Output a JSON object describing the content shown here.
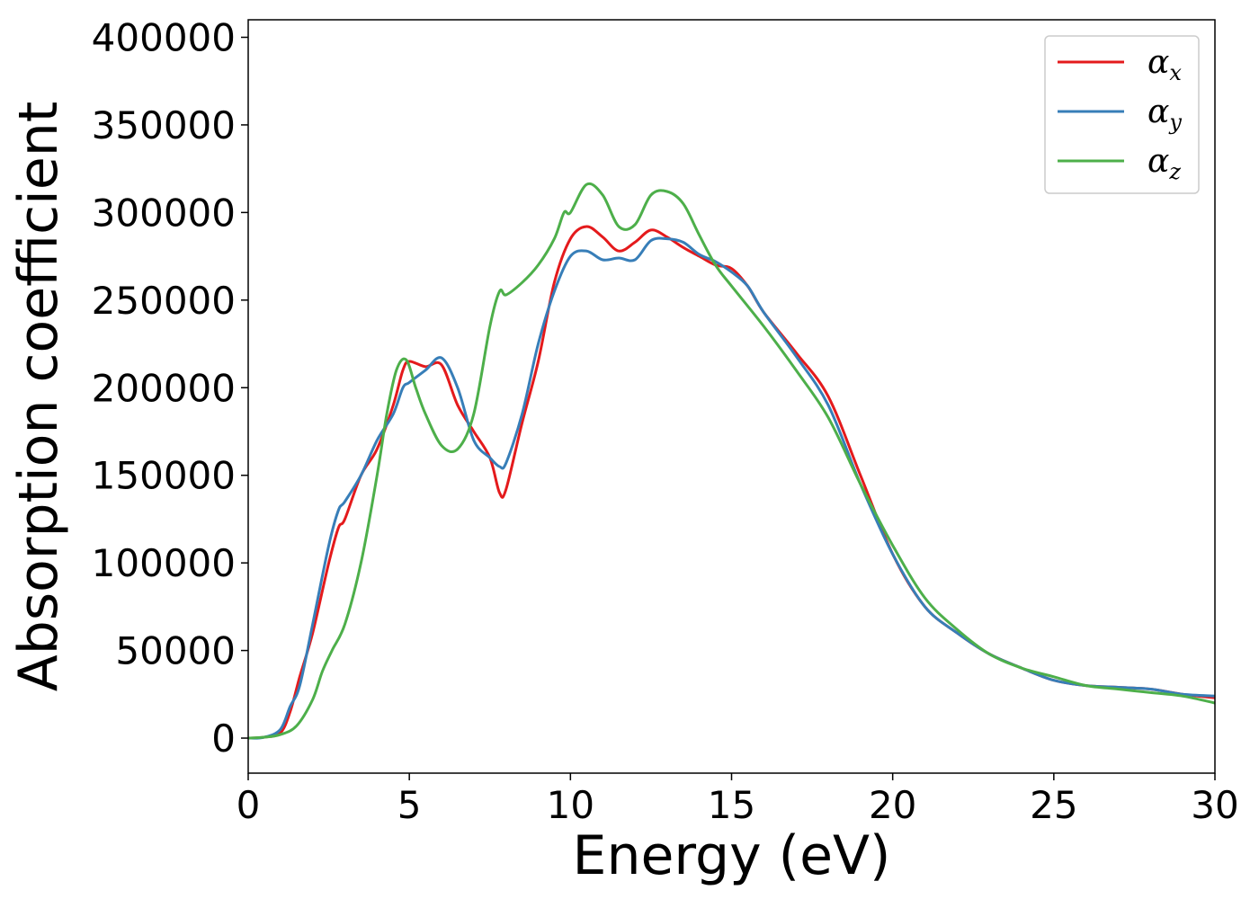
{
  "chart_data": {
    "type": "line",
    "title": "",
    "xlabel": "Energy (eV)",
    "ylabel": "Absorption coefficient",
    "xlim": [
      0,
      30
    ],
    "ylim": [
      -20000,
      410000
    ],
    "xticks": [
      0,
      5,
      10,
      15,
      20,
      25,
      30
    ],
    "yticks": [
      0,
      50000,
      100000,
      150000,
      200000,
      250000,
      300000,
      350000,
      400000
    ],
    "grid": false,
    "legend_position": "top-right",
    "series": [
      {
        "name": "α",
        "subscript": "x",
        "color": "#e41a1c",
        "x": [
          0,
          0.5,
          1.0,
          1.3,
          1.6,
          2.0,
          2.5,
          2.8,
          3.0,
          3.5,
          4.0,
          4.5,
          4.8,
          5.0,
          5.5,
          6.0,
          6.5,
          7.0,
          7.5,
          7.8,
          8.0,
          8.5,
          9.0,
          9.5,
          10.0,
          10.5,
          11.0,
          11.5,
          12.0,
          12.5,
          13.0,
          13.5,
          14.0,
          14.5,
          15.0,
          15.5,
          16.0,
          17.0,
          18.0,
          19.0,
          20.0,
          21.0,
          22.0,
          23.0,
          24.0,
          25.0,
          26.0,
          27.0,
          28.0,
          29.0,
          30.0
        ],
        "y": [
          0,
          500,
          3000,
          15000,
          35000,
          60000,
          100000,
          120000,
          125000,
          150000,
          165000,
          190000,
          210000,
          215000,
          212000,
          213000,
          190000,
          175000,
          160000,
          140000,
          142000,
          180000,
          215000,
          260000,
          285000,
          292000,
          286000,
          278000,
          283000,
          290000,
          286000,
          280000,
          275000,
          270000,
          268000,
          258000,
          243000,
          220000,
          195000,
          150000,
          105000,
          75000,
          60000,
          48000,
          40000,
          33000,
          30000,
          29000,
          28000,
          25000,
          23000
        ]
      },
      {
        "name": "α",
        "subscript": "y",
        "color": "#377eb8",
        "x": [
          0,
          0.5,
          1.0,
          1.3,
          1.6,
          2.0,
          2.5,
          2.8,
          3.0,
          3.5,
          4.0,
          4.5,
          4.8,
          5.0,
          5.5,
          6.0,
          6.5,
          7.0,
          7.5,
          7.8,
          8.0,
          8.5,
          9.0,
          9.5,
          10.0,
          10.5,
          11.0,
          11.5,
          12.0,
          12.5,
          13.0,
          13.5,
          14.0,
          14.5,
          15.0,
          15.5,
          16.0,
          17.0,
          18.0,
          19.0,
          20.0,
          21.0,
          22.0,
          23.0,
          24.0,
          25.0,
          26.0,
          27.0,
          28.0,
          29.0,
          30.0
        ],
        "y": [
          0,
          500,
          5000,
          18000,
          30000,
          65000,
          110000,
          130000,
          135000,
          150000,
          170000,
          185000,
          200000,
          203000,
          210000,
          217000,
          200000,
          170000,
          160000,
          155000,
          157000,
          185000,
          225000,
          255000,
          275000,
          278000,
          273000,
          274000,
          273000,
          284000,
          285000,
          283000,
          276000,
          272000,
          266000,
          258000,
          243000,
          218000,
          190000,
          145000,
          105000,
          75000,
          60000,
          48000,
          40000,
          33000,
          30000,
          29000,
          28000,
          25000,
          24000
        ]
      },
      {
        "name": "α",
        "subscript": "z",
        "color": "#4daf4a",
        "x": [
          0,
          0.5,
          1.0,
          1.5,
          2.0,
          2.3,
          2.6,
          3.0,
          3.5,
          4.0,
          4.3,
          4.6,
          4.9,
          5.2,
          5.5,
          6.0,
          6.5,
          7.0,
          7.5,
          7.8,
          8.0,
          8.5,
          9.0,
          9.5,
          9.8,
          10.0,
          10.5,
          11.0,
          11.5,
          12.0,
          12.5,
          13.0,
          13.5,
          14.0,
          14.5,
          15.0,
          16.0,
          17.0,
          18.0,
          19.0,
          20.0,
          21.0,
          22.0,
          23.0,
          24.0,
          25.0,
          26.0,
          27.0,
          28.0,
          29.0,
          30.0
        ],
        "y": [
          0,
          500,
          2000,
          7000,
          22000,
          38000,
          50000,
          65000,
          100000,
          150000,
          185000,
          210000,
          216000,
          200000,
          185000,
          167000,
          165000,
          185000,
          235000,
          255000,
          253000,
          260000,
          270000,
          285000,
          300000,
          300000,
          316000,
          310000,
          292000,
          293000,
          310000,
          312000,
          305000,
          287000,
          270000,
          258000,
          235000,
          210000,
          183000,
          145000,
          110000,
          80000,
          62000,
          48000,
          40000,
          35000,
          30000,
          28000,
          26000,
          24000,
          20000
        ]
      }
    ]
  }
}
